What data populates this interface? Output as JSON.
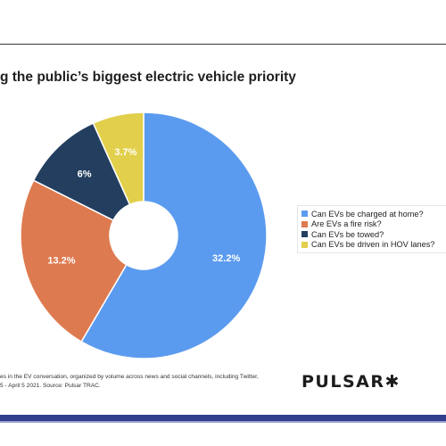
{
  "title": "g the public’s biggest electric vehicle priority",
  "colors": {
    "series": [
      "#5b9bef",
      "#de7a4f",
      "#233e5f",
      "#e2cf4b"
    ],
    "background": "#ffffff",
    "band": "#2f3e8f"
  },
  "chart_data": {
    "type": "pie",
    "variant": "donut",
    "title": "g the public’s biggest electric vehicle priority",
    "categories": [
      "Can EVs be charged at home?",
      "Are EVs a fire risk?",
      "Can EVs be towed?",
      "Can EVs be driven in HOV lanes?"
    ],
    "values": [
      32.2,
      13.2,
      6,
      3.7
    ],
    "value_labels": [
      "32.2%",
      "13.2%",
      "6%",
      "3.7%"
    ],
    "legend_position": "right",
    "start": "top",
    "direction": "clockwise"
  },
  "legend": {
    "items": [
      "Can EVs be charged at home?",
      "Are EVs a fire risk?",
      "Can EVs be towed?",
      "Can EVs be driven in HOV lanes?"
    ]
  },
  "footer": {
    "source_line1": "es in the EV conversation, organized by volume across news and social channels, including Twitter,",
    "source_line2": "5 - April 5 2021. Source: Pulsar TRAC.",
    "logo_text": "PULSAR",
    "logo_mark": "✱"
  }
}
